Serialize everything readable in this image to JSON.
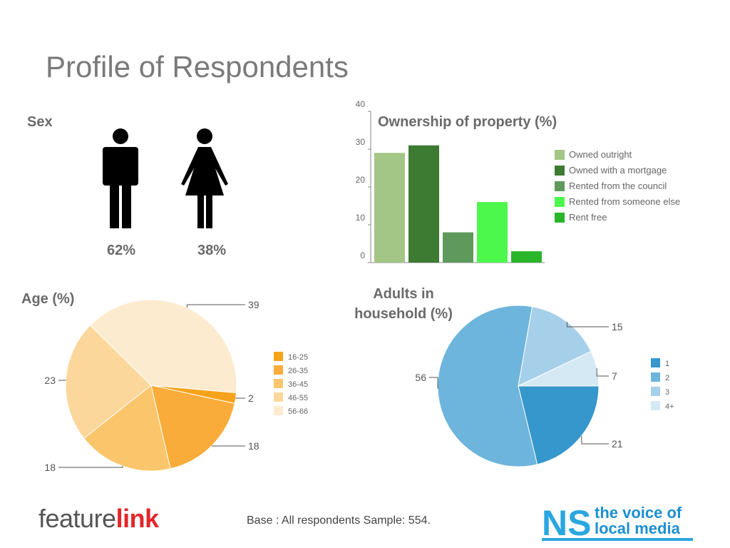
{
  "title": "Profile of Respondents",
  "base_note": "Base : All respondents Sample: 554.",
  "logos": {
    "featurelink": {
      "part1": "feature",
      "part2": "link"
    },
    "ns": {
      "mark": "NS",
      "line1": "the voice of",
      "line2": "local media"
    }
  },
  "sex": {
    "label": "Sex",
    "male": {
      "icon": "male-figure-icon",
      "value": "62%"
    },
    "female": {
      "icon": "female-figure-icon",
      "value": "38%"
    }
  },
  "colors": {
    "ownership": [
      "#a3c585",
      "#3d7a32",
      "#5f9a5c",
      "#4cf84c",
      "#2bb52b"
    ],
    "age": [
      "#f6a21a",
      "#f9ac3a",
      "#fbc56b",
      "#fcd79b",
      "#fdebd0"
    ],
    "adults": [
      "#3597cc",
      "#6db5dc",
      "#a6d0e9",
      "#d5e9f5"
    ]
  },
  "chart_data": [
    {
      "type": "bar",
      "title": "Ownership of property (%)",
      "categories": [
        "Owned outright",
        "Owned with a mortgage",
        "Rented from the council",
        "Rented from someone else",
        "Rent free"
      ],
      "values": [
        29,
        31,
        8,
        16,
        3
      ],
      "ylim": [
        0,
        40
      ],
      "yticks": [
        "0",
        "10",
        "20",
        "30",
        "40"
      ],
      "legend_position": "right"
    },
    {
      "type": "pie",
      "title": "Age (%)",
      "labels": [
        "16-25",
        "26-35",
        "36-45",
        "46-55",
        "56-66"
      ],
      "values": [
        2,
        18,
        18,
        23,
        39
      ],
      "legend_position": "right"
    },
    {
      "type": "pie",
      "title": "Adults in household (%)",
      "title_lines": [
        "Adults in",
        "household (%)"
      ],
      "labels": [
        "1",
        "2",
        "3",
        "4+"
      ],
      "values": [
        21,
        56,
        15,
        7
      ],
      "legend_position": "right"
    }
  ]
}
